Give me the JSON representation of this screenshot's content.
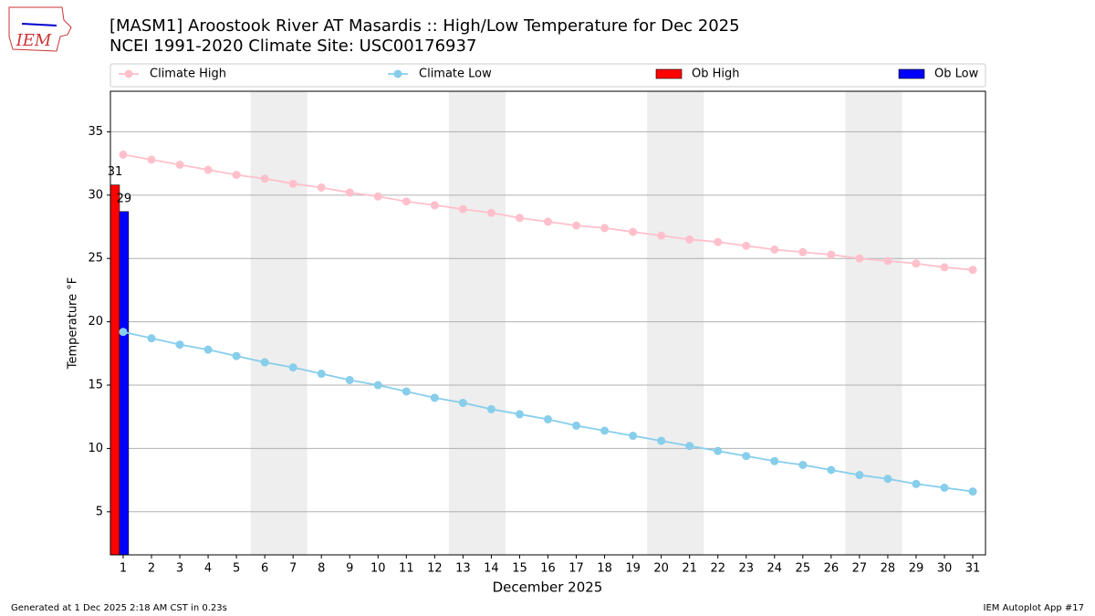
{
  "chart_data": {
    "type": "line",
    "title": "[MASM1] Aroostook River  AT Masardis :: High/Low Temperature for Dec 2025",
    "subtitle": "NCEI 1991-2020 Climate Site: USC00176937",
    "logo_text": "IEM",
    "xlabel": "December 2025",
    "ylabel": "Temperature °F",
    "footer_left": "Generated at 1 Dec 2025 2:18 AM CST in 0.23s",
    "footer_right": "IEM Autoplot App #17",
    "x": [
      1,
      2,
      3,
      4,
      5,
      6,
      7,
      8,
      9,
      10,
      11,
      12,
      13,
      14,
      15,
      16,
      17,
      18,
      19,
      20,
      21,
      22,
      23,
      24,
      25,
      26,
      27,
      28,
      29,
      30,
      31
    ],
    "xlim": [
      0.55,
      31.45
    ],
    "xticks": [
      1,
      2,
      3,
      4,
      5,
      6,
      7,
      8,
      9,
      10,
      11,
      12,
      13,
      14,
      15,
      16,
      17,
      18,
      19,
      20,
      21,
      22,
      23,
      24,
      25,
      26,
      27,
      28,
      29,
      30,
      31
    ],
    "ylim": [
      1.6,
      38.2
    ],
    "yticks": [
      5,
      10,
      15,
      20,
      25,
      30,
      35
    ],
    "grid": true,
    "shaded_x": [
      [
        5.5,
        7.5
      ],
      [
        12.5,
        14.5
      ],
      [
        19.5,
        21.5
      ],
      [
        26.5,
        28.5
      ]
    ],
    "series": [
      {
        "name": "Climate High",
        "kind": "line",
        "color": "#ffc0cb",
        "values": [
          33.2,
          32.8,
          32.4,
          32.0,
          31.6,
          31.3,
          30.9,
          30.6,
          30.2,
          29.9,
          29.5,
          29.2,
          28.9,
          28.6,
          28.2,
          27.9,
          27.6,
          27.4,
          27.1,
          26.8,
          26.5,
          26.3,
          26.0,
          25.7,
          25.5,
          25.3,
          25.0,
          24.8,
          24.6,
          24.3,
          24.1
        ]
      },
      {
        "name": "Climate Low",
        "kind": "line",
        "color": "#87ceeb",
        "values": [
          19.2,
          18.7,
          18.2,
          17.8,
          17.3,
          16.8,
          16.4,
          15.9,
          15.4,
          15.0,
          14.5,
          14.0,
          13.6,
          13.1,
          12.7,
          12.3,
          11.8,
          11.4,
          11.0,
          10.6,
          10.2,
          9.8,
          9.4,
          9.0,
          8.7,
          8.3,
          7.9,
          7.6,
          7.2,
          6.9,
          6.6
        ]
      },
      {
        "name": "Ob High",
        "kind": "bar",
        "color": "#ff0000",
        "values": [
          30.8,
          null,
          null,
          null,
          null,
          null,
          null,
          null,
          null,
          null,
          null,
          null,
          null,
          null,
          null,
          null,
          null,
          null,
          null,
          null,
          null,
          null,
          null,
          null,
          null,
          null,
          null,
          null,
          null,
          null,
          null
        ],
        "value_labels": [
          "31",
          null,
          null,
          null,
          null,
          null,
          null,
          null,
          null,
          null,
          null,
          null,
          null,
          null,
          null,
          null,
          null,
          null,
          null,
          null,
          null,
          null,
          null,
          null,
          null,
          null,
          null,
          null,
          null,
          null,
          null
        ]
      },
      {
        "name": "Ob Low",
        "kind": "bar",
        "color": "#0000ff",
        "values": [
          28.7,
          null,
          null,
          null,
          null,
          null,
          null,
          null,
          null,
          null,
          null,
          null,
          null,
          null,
          null,
          null,
          null,
          null,
          null,
          null,
          null,
          null,
          null,
          null,
          null,
          null,
          null,
          null,
          null,
          null,
          null
        ],
        "value_labels": [
          "29",
          null,
          null,
          null,
          null,
          null,
          null,
          null,
          null,
          null,
          null,
          null,
          null,
          null,
          null,
          null,
          null,
          null,
          null,
          null,
          null,
          null,
          null,
          null,
          null,
          null,
          null,
          null,
          null,
          null,
          null
        ]
      }
    ]
  }
}
